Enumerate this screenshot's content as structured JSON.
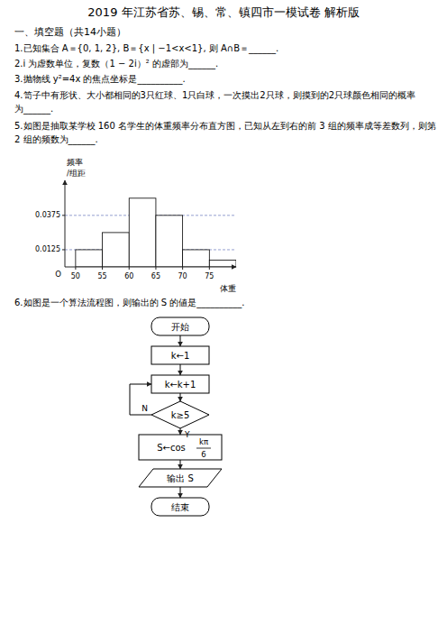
{
  "page": {
    "title": "2019 年江苏省苏、锡、常、镇四市一模试卷   解析版",
    "section": "一、填空题（共14小题）",
    "questions": [
      "1.已知集合 A＝{0, 1, 2}, B＝{x | −1<x<1}, 则 A∩B＝______.",
      "2.i 为虚数单位，复数（1 − 2i）² 的虚部为______.",
      "3.抛物线 y²=4x 的焦点坐标是__________.",
      "4.笥子中有形状、大小都相同的3只红球、1只白球，一次摸出2只球，则摸到的2只球颜色相同的概率",
      "    为______.",
      "5.如图是抽取某学校 160 名学生的体重频率分布直方图，已知从左到右的前 3 组的频率成等差数列，则第",
      "    2 组的频数为______.",
      "6.如图是一个算法流程图，则输出的 S 的値是__________."
    ]
  },
  "chart_data": {
    "type": "histogram",
    "bins": [
      50,
      55,
      60,
      65,
      70,
      75,
      80
    ],
    "values": [
      0.0125,
      0.025,
      0.05,
      0.0375,
      0.0125,
      0.005
    ],
    "x_label": "体重",
    "y_label": [
      "频率",
      "/组距"
    ],
    "annotations": [
      {
        "text": "O"
      }
    ],
    "xlim": [
      48,
      80
    ],
    "ylim": [
      0,
      0.063
    ],
    "xticks": [
      50,
      55,
      60,
      65,
      70,
      75
    ],
    "yticks": [
      0.0125,
      0.0375
    ],
    "grid": true
  },
  "flowchart": {
    "nodes": [
      "开始",
      "k←1",
      "k←k+1",
      "k≥5",
      {
        "prefix": "S←cos",
        "numerator": "kπ",
        "denominator": "6"
      },
      "输出 S",
      "结束"
    ],
    "yes_label": "Y",
    "no_label": "N"
  }
}
